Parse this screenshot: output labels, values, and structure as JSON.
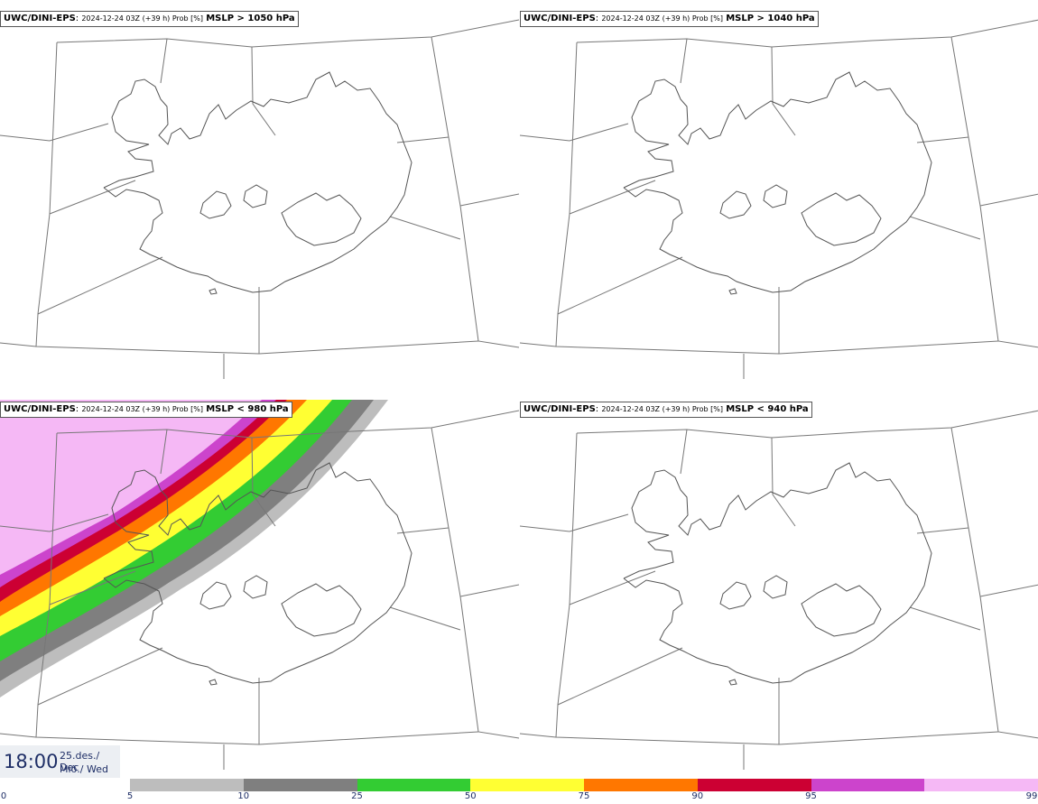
{
  "panels": [
    {
      "model": "UWC/DINI-EPS",
      "run": "2024-12-24 03Z (+39 h) Prob [%]",
      "threshold": "MSLP > 1050 hPa"
    },
    {
      "model": "UWC/DINI-EPS",
      "run": "2024-12-24 03Z (+39 h) Prob [%]",
      "threshold": "MSLP > 1040 hPa"
    },
    {
      "model": "UWC/DINI-EPS",
      "run": "2024-12-24 03Z (+39 h) Prob [%]",
      "threshold": "MSLP < 980 hPa"
    },
    {
      "model": "UWC/DINI-EPS",
      "run": "2024-12-24 03Z (+39 h) Prob [%]",
      "threshold": "MSLP < 940 hPa"
    }
  ],
  "valid_time": {
    "time": "18:00",
    "date_line1": "25.des./ Dec",
    "date_line2": "Mið./ Wed"
  },
  "legend": {
    "ticks": [
      "0",
      "5",
      "10",
      "25",
      "50",
      "75",
      "90",
      "95",
      "99"
    ],
    "colors": [
      "#bdbdbd",
      "#7f7f7f",
      "#33cc33",
      "#ffff33",
      "#ff7700",
      "#cc0033",
      "#cc44cc",
      "#f5b8f5"
    ]
  }
}
